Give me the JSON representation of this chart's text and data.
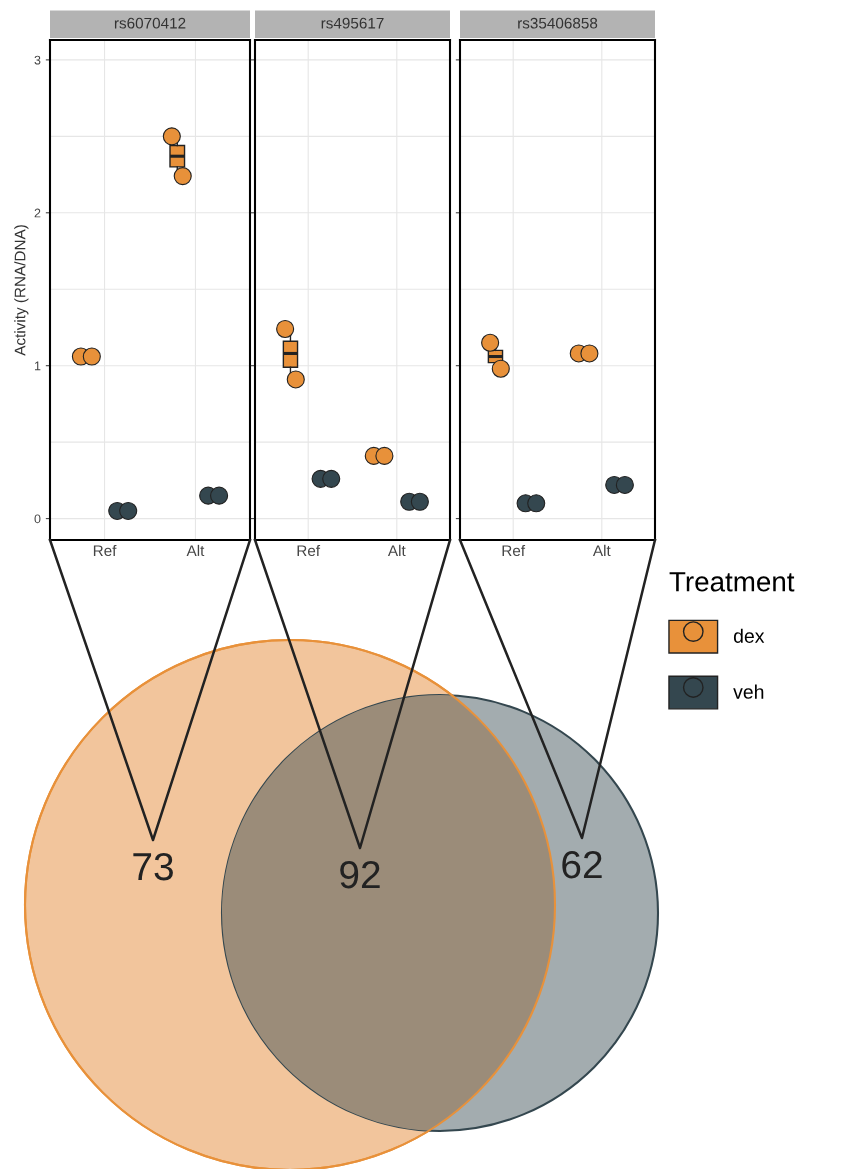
{
  "chart_data": [
    {
      "type": "box",
      "title": "rs6070412",
      "ylabel": "Activity (RNA/DNA)",
      "legend": "right",
      "legend_title": "Treatment",
      "categories": [
        "Ref",
        "Alt"
      ],
      "ylim": [
        -0.14,
        3.13
      ],
      "yticks": [
        0,
        1,
        2,
        3
      ],
      "grid": true,
      "series": [
        {
          "name": "dex",
          "color": "#e8913a",
          "boxes": [
            null,
            {
              "low": 2.24,
              "q1": 2.3,
              "median": 2.37,
              "q3": 2.44,
              "high": 2.5
            }
          ]
        },
        {
          "name": "veh",
          "color": "#34474f",
          "boxes": [
            null,
            null
          ]
        },
        {
          "type": "scatter",
          "color": "#e8913a",
          "x": [
            "Ref",
            "Ref",
            "Alt",
            "Alt"
          ],
          "values": [
            1.06,
            1.06,
            2.5,
            2.24
          ]
        },
        {
          "type": "scatter",
          "color": "#34474f",
          "x": [
            "Ref",
            "Ref",
            "Alt",
            "Alt"
          ],
          "values": [
            0.05,
            0.05,
            0.15,
            0.15
          ]
        }
      ]
    },
    {
      "type": "box",
      "title": "rs495617",
      "categories": [
        "Ref",
        "Alt"
      ],
      "ylim": [
        -0.14,
        3.13
      ],
      "yticks": [
        0,
        1,
        2,
        3
      ],
      "grid": true,
      "tick_labels": "x",
      "series": [
        {
          "color": "#e8913a",
          "boxes": [
            {
              "low": 0.91,
              "q1": 0.99,
              "median": 1.08,
              "q3": 1.16,
              "high": 1.24
            },
            null
          ]
        },
        {
          "color": "#34474f",
          "boxes": [
            null,
            null
          ]
        },
        {
          "type": "scatter",
          "color": "#e8913a",
          "x": [
            "Ref",
            "Ref",
            "Alt",
            "Alt"
          ],
          "values": [
            1.24,
            0.91,
            0.41,
            0.41
          ]
        },
        {
          "type": "scatter",
          "color": "#34474f",
          "x": [
            "Ref",
            "Ref",
            "Alt",
            "Alt"
          ],
          "values": [
            0.26,
            0.26,
            0.11,
            0.11
          ]
        }
      ]
    },
    {
      "type": "box",
      "title": "rs35406858",
      "categories": [
        "Ref",
        "Alt"
      ],
      "ylim": [
        -0.14,
        3.13
      ],
      "yticks": [
        0,
        1,
        2,
        3
      ],
      "grid": true,
      "tick_labels": "x",
      "series": [
        {
          "color": "#e8913a",
          "boxes": [
            {
              "low": 0.98,
              "q1": 1.02,
              "median": 1.06,
              "q3": 1.1,
              "high": 1.15
            },
            null
          ]
        },
        {
          "color": "#34474f",
          "boxes": [
            null,
            null
          ]
        },
        {
          "type": "scatter",
          "color": "#e8913a",
          "x": [
            "Ref",
            "Ref",
            "Alt",
            "Alt"
          ],
          "values": [
            1.15,
            0.98,
            1.08,
            1.08
          ]
        },
        {
          "type": "scatter",
          "color": "#34474f",
          "x": [
            "Ref",
            "Ref",
            "Alt",
            "Alt"
          ],
          "values": [
            0.1,
            0.1,
            0.22,
            0.22
          ]
        }
      ]
    },
    {
      "type": "other",
      "categories": [
        null,
        null,
        null
      ],
      "values": [
        73,
        92,
        62
      ],
      "data_labels": true,
      "colors": [
        "#f2c59c",
        "#9b8c79",
        "#a3acaf"
      ]
    }
  ]
}
